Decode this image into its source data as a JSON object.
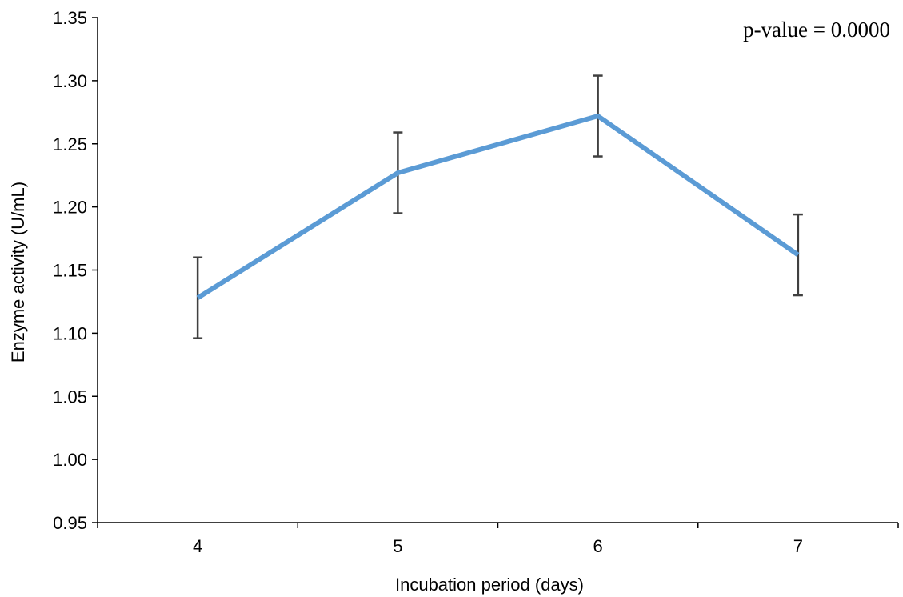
{
  "chart_data": {
    "type": "line",
    "title": "",
    "xlabel": "Incubation period (days)",
    "ylabel": "Enzyme activity (U/mL)",
    "categories": [
      "4",
      "5",
      "6",
      "7"
    ],
    "series": [
      {
        "values": [
          1.128,
          1.227,
          1.272,
          1.162
        ],
        "error": [
          0.032,
          0.032,
          0.032,
          0.032
        ],
        "color": "#5B9BD5"
      }
    ],
    "ylim": [
      0.95,
      1.35
    ],
    "yticks": [
      "0.95",
      "1.00",
      "1.05",
      "1.10",
      "1.15",
      "1.20",
      "1.25",
      "1.30",
      "1.35"
    ],
    "grid": false,
    "legend": "none",
    "annotations": [
      "p-value = 0.0000"
    ]
  }
}
